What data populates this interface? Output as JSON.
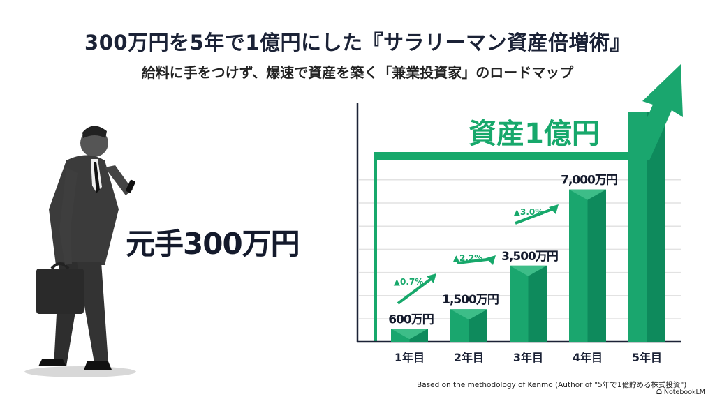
{
  "header": {
    "title": "300万円を5年で1億円にした『サラリーマン資産倍増術』",
    "subtitle": "給料に手をつけず、爆速で資産を築く「兼業投資家」のロードマップ"
  },
  "left": {
    "seed_label": "元手300万円",
    "illustration": "businessman-with-phone-and-briefcase"
  },
  "chart_data": {
    "type": "bar",
    "goal_label": "資産1億円",
    "categories": [
      "1年目",
      "2年目",
      "3年目",
      "4年目",
      "5年目"
    ],
    "values": [
      600,
      1500,
      3500,
      7000,
      10000
    ],
    "value_labels": [
      "600万円",
      "1,500万円",
      "3,500万円",
      "7,000万円",
      ""
    ],
    "growth_annotations": [
      "▲0.7%",
      "▲2.2%",
      "▲3.0%"
    ],
    "unit": "万円",
    "grid": true,
    "colors": {
      "bar": "#1aa66e",
      "bar_dark": "#0e8a5c",
      "accent": "#17a86b"
    }
  },
  "footer": {
    "credit": "Based on the methodology of Kenmo (Author of \"5年で1億貯める株式投資\")",
    "brand": "NotebookLM"
  }
}
